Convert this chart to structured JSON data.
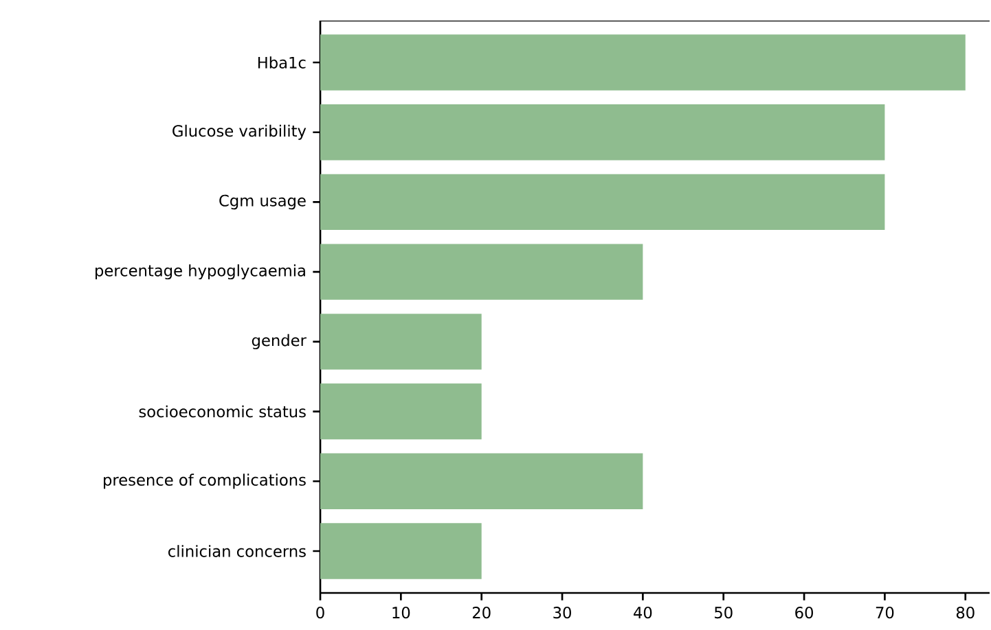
{
  "chart_data": {
    "type": "bar",
    "orientation": "horizontal",
    "categories": [
      "Hba1c",
      "Glucose varibility",
      "Cgm usage",
      "percentage hypoglycaemia",
      "gender",
      "socioeconomic status",
      "presence of complications",
      "clinician concerns"
    ],
    "values": [
      80,
      70,
      70,
      40,
      20,
      20,
      40,
      20
    ],
    "color": "#8fbc8f",
    "xlim": [
      0,
      83
    ],
    "xticks": [
      0,
      10,
      20,
      30,
      40,
      50,
      60,
      70,
      80
    ],
    "grid": false
  }
}
